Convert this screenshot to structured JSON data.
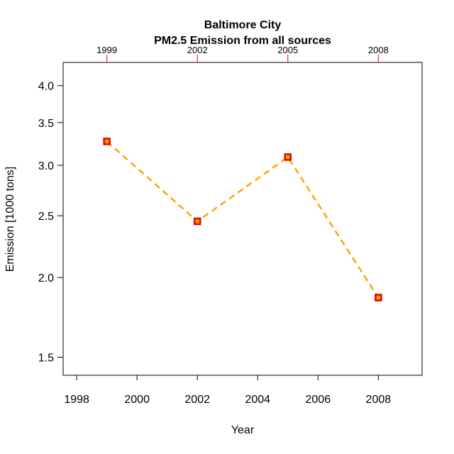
{
  "chart_data": {
    "type": "line",
    "title": "Baltimore City",
    "subtitle": "PM2.5 Emission from all sources",
    "xlabel": "Year",
    "ylabel": "Emission [1000 tons]",
    "x_ticks": [
      "1998",
      "2000",
      "2002",
      "2004",
      "2006",
      "2008"
    ],
    "y_ticks": [
      "1.5",
      "2.0",
      "2.5",
      "3.0",
      "3.5",
      "4.0"
    ],
    "top_ticks": [
      "1999",
      "2002",
      "2005",
      "2008"
    ],
    "y_scale": "log",
    "xlim": [
      1997.55,
      2009.45
    ],
    "ylim": [
      1.405,
      4.35
    ],
    "grid": false,
    "series": [
      {
        "x": [
          1999,
          2002,
          2005,
          2008
        ],
        "y": [
          3.27,
          2.45,
          3.09,
          1.86
        ]
      }
    ],
    "colors": {
      "line": "#FFA500",
      "marker_fill": "#FFA500",
      "marker_border": "#E50000",
      "top_tick": "#E50000",
      "frame": "#000000"
    }
  }
}
